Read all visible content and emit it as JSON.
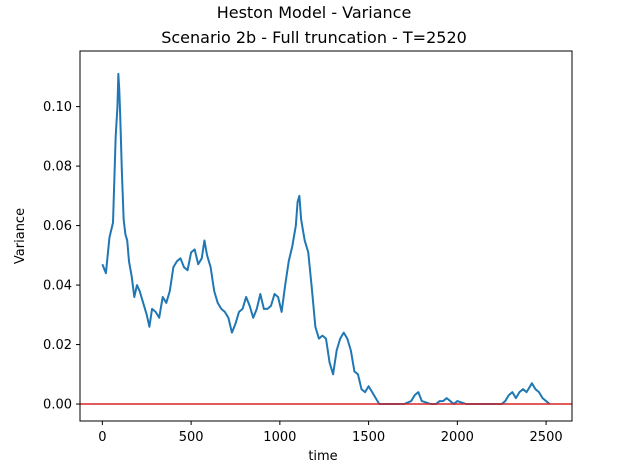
{
  "chart_data": {
    "type": "line",
    "title": "Heston Model - Variance",
    "subtitle": "Scenario 2b - Full truncation - T=2520",
    "xlabel": "time",
    "ylabel": "Variance",
    "xlim": [
      -126,
      2646
    ],
    "ylim": [
      -0.0057,
      0.1187
    ],
    "xticks": [
      0,
      500,
      1000,
      1500,
      2000,
      2500
    ],
    "xtick_labels": [
      "0",
      "500",
      "1000",
      "1500",
      "2000",
      "2500"
    ],
    "yticks": [
      0.0,
      0.02,
      0.04,
      0.06,
      0.08,
      0.1
    ],
    "ytick_labels": [
      "0.00",
      "0.02",
      "0.04",
      "0.06",
      "0.08",
      "0.10"
    ],
    "grid": false,
    "series": [
      {
        "color": "#1f77b4",
        "x": [
          0,
          20,
          40,
          60,
          75,
          85,
          90,
          95,
          100,
          110,
          120,
          130,
          140,
          150,
          165,
          180,
          195,
          210,
          230,
          250,
          265,
          280,
          300,
          320,
          340,
          360,
          380,
          400,
          420,
          440,
          460,
          480,
          500,
          520,
          540,
          560,
          575,
          590,
          610,
          630,
          650,
          670,
          690,
          710,
          730,
          750,
          770,
          790,
          810,
          830,
          850,
          870,
          890,
          910,
          930,
          950,
          970,
          990,
          1010,
          1030,
          1050,
          1070,
          1090,
          1100,
          1110,
          1120,
          1140,
          1160,
          1180,
          1200,
          1220,
          1240,
          1260,
          1280,
          1300,
          1320,
          1340,
          1360,
          1380,
          1400,
          1420,
          1440,
          1460,
          1480,
          1500,
          1520,
          1540,
          1560,
          1580,
          1600,
          1650,
          1700,
          1740,
          1760,
          1780,
          1800,
          1850,
          1880,
          1900,
          1920,
          1940,
          1960,
          1980,
          2000,
          2050,
          2100,
          2150,
          2200,
          2250,
          2270,
          2290,
          2310,
          2330,
          2350,
          2370,
          2390,
          2410,
          2420,
          2440,
          2460,
          2480,
          2500,
          2520
        ],
        "y": [
          0.047,
          0.044,
          0.056,
          0.061,
          0.09,
          0.1,
          0.111,
          0.106,
          0.098,
          0.078,
          0.062,
          0.057,
          0.055,
          0.048,
          0.043,
          0.036,
          0.04,
          0.038,
          0.034,
          0.03,
          0.026,
          0.032,
          0.031,
          0.029,
          0.036,
          0.034,
          0.038,
          0.046,
          0.048,
          0.049,
          0.046,
          0.045,
          0.051,
          0.052,
          0.047,
          0.049,
          0.055,
          0.05,
          0.046,
          0.038,
          0.034,
          0.032,
          0.031,
          0.029,
          0.024,
          0.027,
          0.031,
          0.032,
          0.036,
          0.033,
          0.029,
          0.032,
          0.037,
          0.032,
          0.032,
          0.033,
          0.037,
          0.036,
          0.031,
          0.04,
          0.048,
          0.053,
          0.06,
          0.068,
          0.07,
          0.062,
          0.055,
          0.051,
          0.039,
          0.026,
          0.022,
          0.023,
          0.022,
          0.014,
          0.01,
          0.018,
          0.022,
          0.024,
          0.022,
          0.018,
          0.011,
          0.01,
          0.005,
          0.004,
          0.006,
          0.004,
          0.002,
          0.0,
          0.0,
          0.0,
          0.0,
          0.0,
          0.001,
          0.003,
          0.004,
          0.001,
          0.0,
          0.0,
          0.001,
          0.001,
          0.002,
          0.001,
          0.0,
          0.001,
          0.0,
          0.0,
          0.0,
          0.0,
          0.0,
          0.001,
          0.003,
          0.004,
          0.002,
          0.004,
          0.005,
          0.004,
          0.006,
          0.007,
          0.005,
          0.004,
          0.002,
          0.001,
          0.0
        ]
      },
      {
        "color": "#d62728",
        "x": [
          -126,
          2646
        ],
        "y": [
          0.0,
          0.0
        ]
      }
    ]
  }
}
